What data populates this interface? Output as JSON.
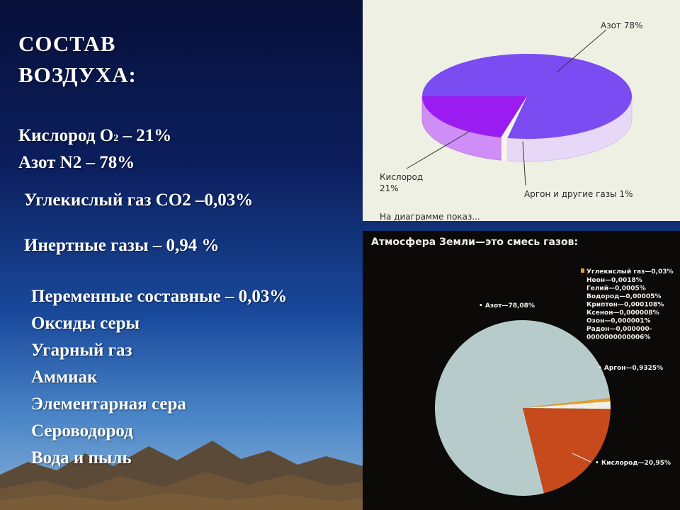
{
  "slide": {
    "title_line1": "СОСТАВ",
    "title_line2": "ВОЗДУХА:",
    "oxygen_prefix": "Кислород О",
    "oxygen_sub": "2",
    "oxygen_suffix": " – 21%",
    "nitrogen": "Азот N2 – 78%",
    "co2": "Углекислый газ СО2 –0,03%",
    "inert": "Инертные газы – 0,94 %",
    "variable": "Переменные составные – 0,03%",
    "components": [
      "Оксиды серы",
      "Угарный газ",
      "Аммиак",
      "Элементарная сера",
      "Сероводород",
      "Вода и пыль"
    ]
  },
  "colors": {
    "nitrogen_top": "#7a4cf2",
    "nitrogen_side": "#e7d8f8",
    "oxygen_top": "#9b1cf0",
    "oxygen_side": "#cf8ef6",
    "air_pie": "#b7ccca",
    "oxygen_pie": "#c64a1c",
    "argon_pie": "#f1efe6",
    "co2_pie": "#f0a018"
  },
  "chart_data": [
    {
      "type": "pie",
      "style": "3d",
      "series": [
        {
          "label": "Азот",
          "value": 78,
          "text": "Азот 78%"
        },
        {
          "label": "Кислород",
          "value": 21,
          "text_line1": "Кислород",
          "text_line2": "21%"
        },
        {
          "label": "Аргон и другие газы",
          "value": 1,
          "text": "Аргон и другие газы 1%"
        }
      ],
      "footer": "На диаграмме показ..."
    },
    {
      "type": "pie",
      "title": "Атмосфера Земли—это смесь газов:",
      "series": [
        {
          "label": "Азот",
          "value": 78.08,
          "text": "• Азот—78,08%"
        },
        {
          "label": "Кислород",
          "value": 20.95,
          "text": "• Кислород—20,95%"
        },
        {
          "label": "Аргон",
          "value": 0.9325,
          "text": "• Аргон—0,9325%"
        },
        {
          "label": "Углекислый газ",
          "value": 0.03,
          "text": "Углекислый газ—0,03%"
        }
      ],
      "other_gases": [
        "Неон—0,0018%",
        "Гелий—0,0005%",
        "Водород—0,00005%",
        "Криптон—0,000108%",
        "Ксенон—0,000008%",
        "Озон—0,000001%",
        "Радон—0,000000-",
        "0000000000006%"
      ]
    }
  ]
}
